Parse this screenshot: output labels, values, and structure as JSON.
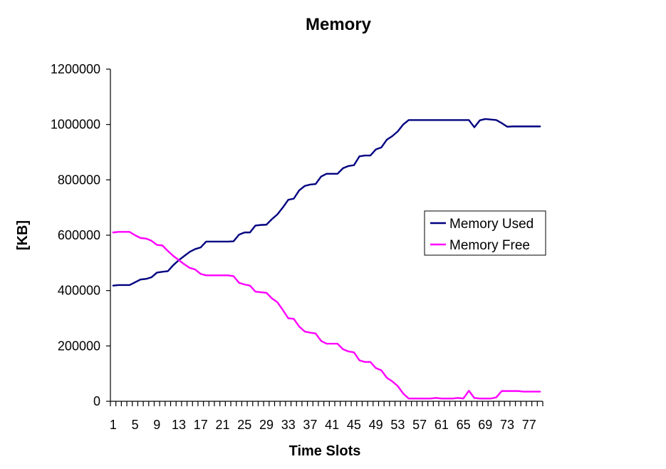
{
  "chart_data": {
    "type": "line",
    "title": "Memory",
    "xlabel": "Time Slots",
    "ylabel": "[KB]",
    "ylim": [
      0,
      1200000
    ],
    "yticks": [
      "0",
      "200000",
      "400000",
      "600000",
      "800000",
      "1000000",
      "1200000"
    ],
    "xlim": [
      1,
      79
    ],
    "xticks": [
      "1",
      "5",
      "9",
      "13",
      "17",
      "21",
      "25",
      "29",
      "33",
      "37",
      "41",
      "45",
      "49",
      "53",
      "57",
      "61",
      "65",
      "69",
      "73",
      "77"
    ],
    "grid": false,
    "legend_position": "right",
    "x": [
      1,
      2,
      3,
      4,
      5,
      6,
      7,
      8,
      9,
      10,
      11,
      12,
      13,
      14,
      15,
      16,
      17,
      18,
      19,
      20,
      21,
      22,
      23,
      24,
      25,
      26,
      27,
      28,
      29,
      30,
      31,
      32,
      33,
      34,
      35,
      36,
      37,
      38,
      39,
      40,
      41,
      42,
      43,
      44,
      45,
      46,
      47,
      48,
      49,
      50,
      51,
      52,
      53,
      54,
      55,
      56,
      57,
      58,
      59,
      60,
      61,
      62,
      63,
      64,
      65,
      66,
      67,
      68,
      69,
      70,
      71,
      72,
      73,
      74,
      75,
      76,
      77,
      78,
      79
    ],
    "series": [
      {
        "name": "Memory Used",
        "color": "#000080",
        "values": [
          418000,
          420000,
          420000,
          420000,
          430000,
          440000,
          442000,
          448000,
          465000,
          468000,
          470000,
          492000,
          510000,
          525000,
          540000,
          550000,
          556000,
          577000,
          577000,
          577000,
          577000,
          577000,
          578000,
          602000,
          610000,
          610000,
          635000,
          637000,
          638000,
          658000,
          675000,
          700000,
          728000,
          732000,
          762000,
          778000,
          783000,
          785000,
          812000,
          822000,
          822000,
          822000,
          842000,
          850000,
          853000,
          885000,
          888000,
          888000,
          910000,
          917000,
          945000,
          958000,
          975000,
          1000000,
          1016000,
          1016000,
          1016000,
          1016000,
          1016000,
          1016000,
          1016000,
          1016000,
          1016000,
          1016000,
          1016000,
          1016000,
          990000,
          1015000,
          1020000,
          1018000,
          1016000,
          1005000,
          992000,
          993000,
          993000,
          993000,
          993000,
          993000,
          993000
        ]
      },
      {
        "name": "Memory Free",
        "color": "#FF00FF",
        "values": [
          610000,
          612000,
          612000,
          612000,
          600000,
          590000,
          588000,
          580000,
          565000,
          563000,
          543000,
          525000,
          510000,
          495000,
          482000,
          476000,
          460000,
          455000,
          455000,
          455000,
          455000,
          455000,
          452000,
          428000,
          422000,
          418000,
          396000,
          394000,
          392000,
          372000,
          358000,
          330000,
          300000,
          298000,
          270000,
          252000,
          248000,
          245000,
          218000,
          208000,
          208000,
          208000,
          188000,
          180000,
          177000,
          148000,
          142000,
          142000,
          120000,
          112000,
          85000,
          72000,
          55000,
          28000,
          10000,
          10000,
          10000,
          10000,
          10000,
          12000,
          10000,
          10000,
          10000,
          12000,
          10000,
          38000,
          12000,
          10000,
          10000,
          10000,
          14000,
          37000,
          37000,
          37000,
          37000,
          35000,
          35000,
          35000,
          35000
        ]
      }
    ]
  }
}
